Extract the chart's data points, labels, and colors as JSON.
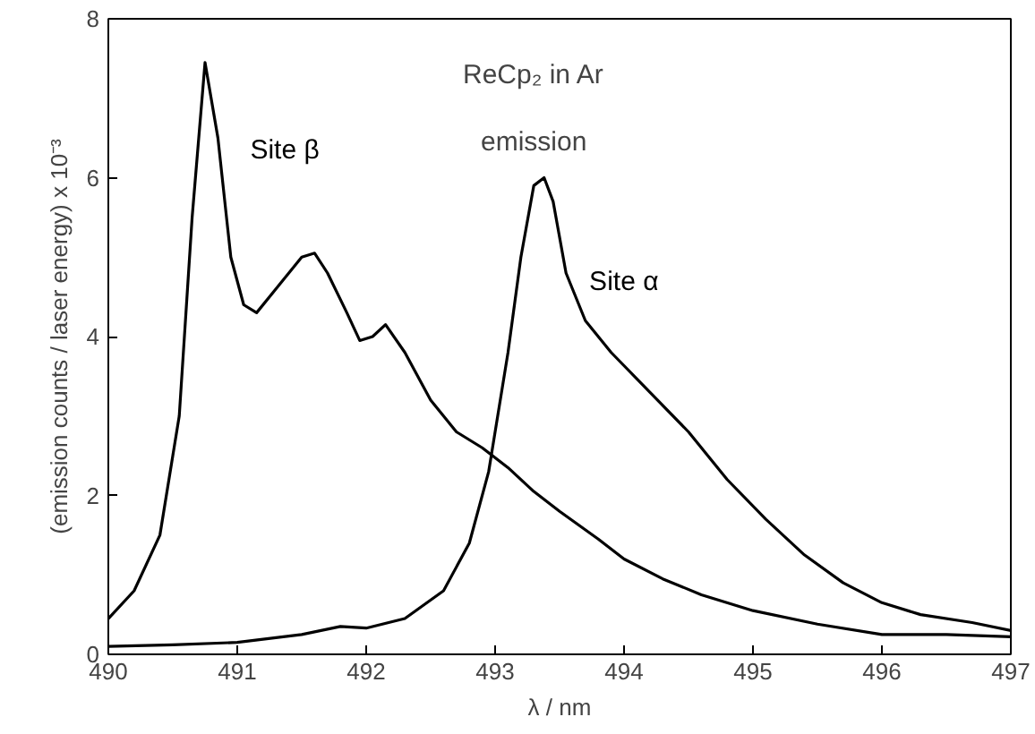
{
  "chart_data": {
    "type": "line",
    "xlabel": "λ / nm",
    "ylabel": "(emission counts / laser energy) x 10⁻³",
    "annotations": [
      "ReCp₂ in Ar",
      "emission"
    ],
    "xlim": [
      490,
      497
    ],
    "xticks": [
      490,
      491,
      492,
      493,
      494,
      495,
      496,
      497
    ],
    "ylim": [
      0,
      8
    ],
    "yticks": [
      0,
      2,
      4,
      6,
      8
    ],
    "grid": false,
    "legend": false,
    "marker": "none",
    "line_style": "solid",
    "series": [
      {
        "name": "Site β",
        "color": "#000000",
        "x": [
          490,
          490.2,
          490.4,
          490.55,
          490.65,
          490.75,
          490.85,
          490.95,
          491.05,
          491.15,
          491.3,
          491.5,
          491.6,
          491.7,
          491.85,
          491.95,
          492.05,
          492.15,
          492.3,
          492.5,
          492.7,
          492.9,
          493.1,
          493.3,
          493.5,
          493.8,
          494,
          494.3,
          494.6,
          495,
          495.5,
          496,
          496.5,
          497
        ],
        "values": [
          0.45,
          0.8,
          1.5,
          3.0,
          5.5,
          7.45,
          6.5,
          5.0,
          4.4,
          4.3,
          4.6,
          5.0,
          5.05,
          4.8,
          4.3,
          3.95,
          4.0,
          4.15,
          3.8,
          3.2,
          2.8,
          2.6,
          2.35,
          2.05,
          1.8,
          1.45,
          1.2,
          0.95,
          0.75,
          0.55,
          0.38,
          0.25,
          0.25,
          0.22
        ]
      },
      {
        "name": "Site α",
        "color": "#000000",
        "x": [
          490,
          490.5,
          491,
          491.5,
          491.8,
          492,
          492.3,
          492.6,
          492.8,
          492.95,
          493.1,
          493.2,
          493.3,
          493.38,
          493.45,
          493.55,
          493.7,
          493.9,
          494.2,
          494.5,
          494.8,
          495.1,
          495.4,
          495.7,
          496,
          496.3,
          496.7,
          497
        ],
        "values": [
          0.1,
          0.12,
          0.15,
          0.25,
          0.35,
          0.33,
          0.45,
          0.8,
          1.4,
          2.3,
          3.8,
          5.0,
          5.9,
          6.0,
          5.7,
          4.8,
          4.2,
          3.8,
          3.3,
          2.8,
          2.2,
          1.7,
          1.25,
          0.9,
          0.65,
          0.5,
          0.4,
          0.3
        ]
      }
    ]
  }
}
